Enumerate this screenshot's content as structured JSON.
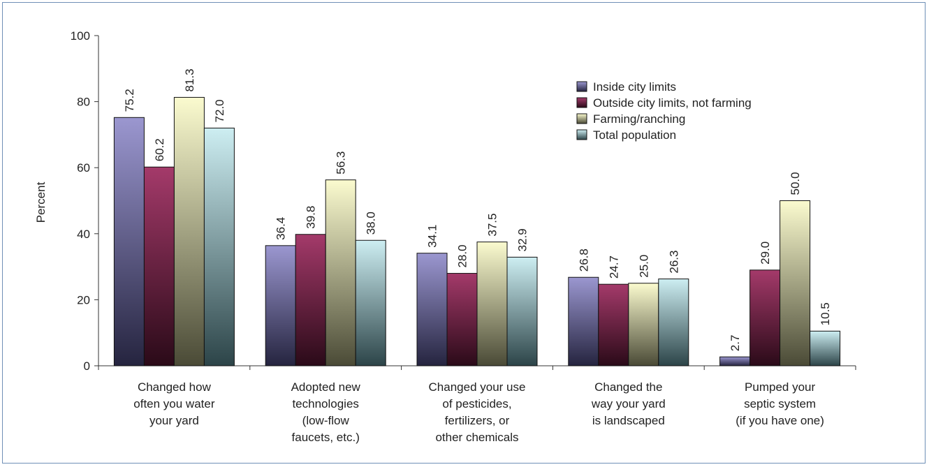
{
  "chart_data": {
    "type": "bar",
    "title": "",
    "xlabel": "",
    "ylabel": "Percent",
    "ylim": [
      0,
      100
    ],
    "yticks": [
      0,
      20,
      40,
      60,
      80,
      100
    ],
    "grid": false,
    "legend_position": "top-right",
    "categories": [
      [
        "Changed how",
        "often you water",
        "your yard"
      ],
      [
        "Adopted new",
        "technologies",
        "(low-flow",
        "faucets, etc.)"
      ],
      [
        "Changed your use",
        "of pesticides,",
        "fertilizers, or",
        "other chemicals"
      ],
      [
        "Changed the",
        "way your yard",
        "is landscaped"
      ],
      [
        "Pumped your",
        "septic system",
        "(if you have one)"
      ]
    ],
    "series": [
      {
        "name": "Inside city limits",
        "values": [
          75.2,
          36.4,
          34.1,
          26.8,
          2.7
        ],
        "labels": [
          "75.2",
          "36.4",
          "34.1",
          "26.8",
          "2.7"
        ],
        "color_top": "#9b97d0",
        "color_bottom": "#25243f"
      },
      {
        "name": "Outside city limits, not farming",
        "values": [
          60.2,
          39.8,
          28.0,
          24.7,
          29.0
        ],
        "labels": [
          "60.2",
          "39.8",
          "28.0",
          "24.7",
          "29.0"
        ],
        "color_top": "#a43a6a",
        "color_bottom": "#2a0a18"
      },
      {
        "name": "Farming/ranching",
        "values": [
          81.3,
          56.3,
          37.5,
          25.0,
          50.0
        ],
        "labels": [
          "81.3",
          "56.3",
          "37.5",
          "25.0",
          "50.0"
        ],
        "color_top": "#fbfbcf",
        "color_bottom": "#4a4a36"
      },
      {
        "name": "Total population",
        "values": [
          72.0,
          38.0,
          32.9,
          26.3,
          10.5
        ],
        "labels": [
          "72.0",
          "38.0",
          "32.9",
          "26.3",
          "10.5"
        ],
        "color_top": "#cdeef2",
        "color_bottom": "#2c4448"
      }
    ]
  }
}
